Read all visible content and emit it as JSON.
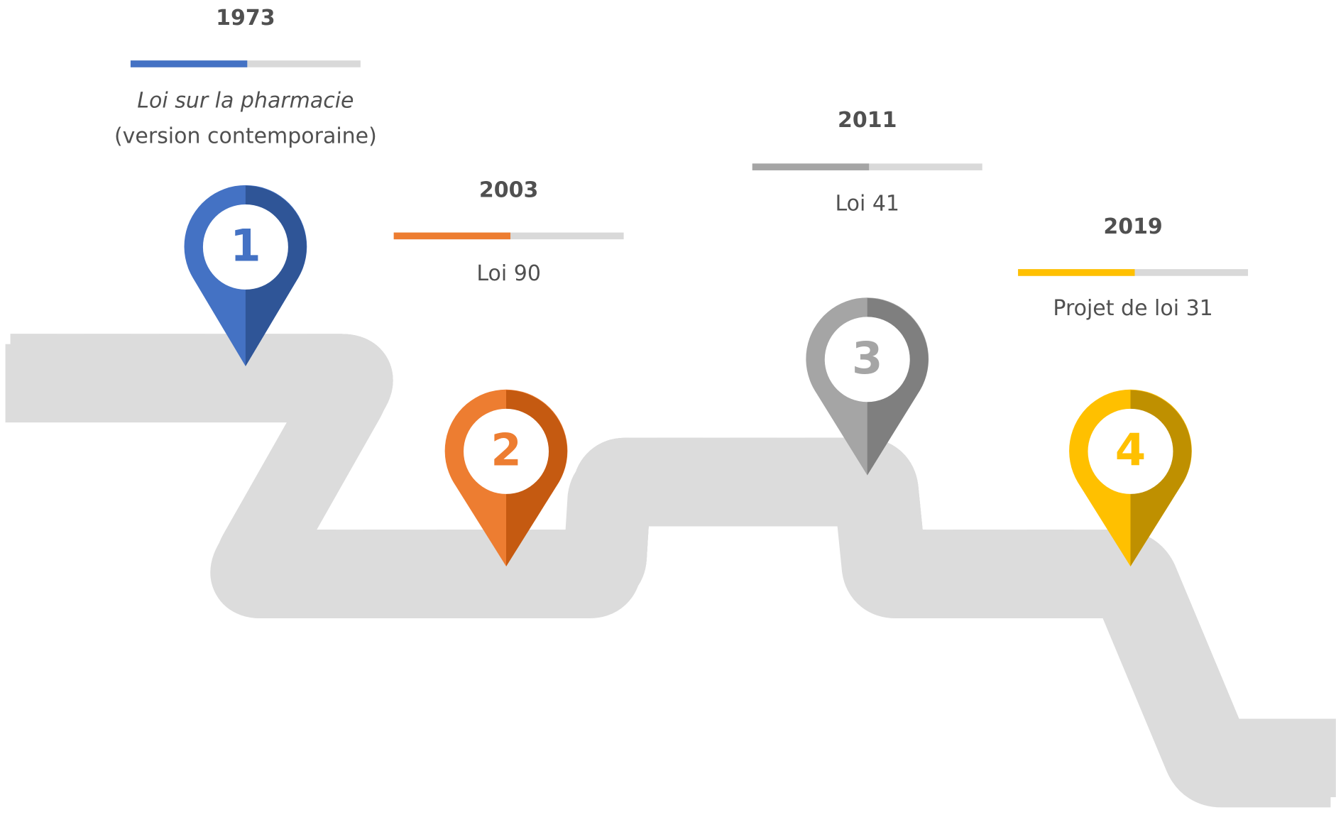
{
  "milestones": [
    {
      "number": "1",
      "year": "1973",
      "title": "Loi sur la pharmacie",
      "subtitle": "(version contemporaine)",
      "color": "#4472c4",
      "shade": "#2f5597"
    },
    {
      "number": "2",
      "year": "2003",
      "title": "Loi 90",
      "color": "#ed7d31",
      "shade": "#c55a11"
    },
    {
      "number": "3",
      "year": "2011",
      "title": "Loi 41",
      "color": "#a5a5a5",
      "shade": "#7f7f7f"
    },
    {
      "number": "4",
      "year": "2019",
      "title": "Projet de loi 31",
      "color": "#ffc000",
      "shade": "#bf9000"
    }
  ]
}
